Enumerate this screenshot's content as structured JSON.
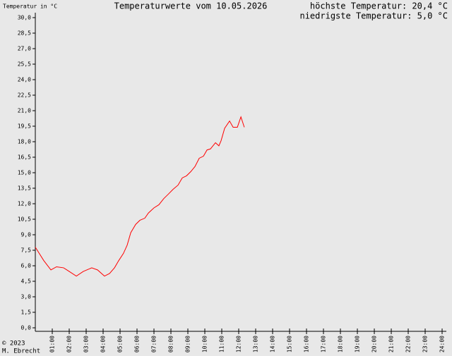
{
  "chart_data": {
    "type": "line",
    "title": "Temperaturwerte vom 10.05.2026",
    "y_axis_label": "Temperatur in °C",
    "annotations": [
      "höchste Temperatur: 20,4 °C",
      "niedrigste Temperatur: 5,0 °C"
    ],
    "footer": [
      "© 2023",
      "M. Ebrecht"
    ],
    "xlim": [
      0,
      24
    ],
    "ylim": [
      0,
      30
    ],
    "xticks": [
      {
        "value": 1,
        "label": "01:00"
      },
      {
        "value": 2,
        "label": "02:00"
      },
      {
        "value": 3,
        "label": "03:00"
      },
      {
        "value": 4,
        "label": "04:00"
      },
      {
        "value": 5,
        "label": "05:00"
      },
      {
        "value": 6,
        "label": "06:00"
      },
      {
        "value": 7,
        "label": "07:00"
      },
      {
        "value": 8,
        "label": "08:00"
      },
      {
        "value": 9,
        "label": "09:00"
      },
      {
        "value": 10,
        "label": "10:00"
      },
      {
        "value": 11,
        "label": "11:00"
      },
      {
        "value": 12,
        "label": "12:00"
      },
      {
        "value": 13,
        "label": "13:00"
      },
      {
        "value": 14,
        "label": "14:00"
      },
      {
        "value": 15,
        "label": "15:00"
      },
      {
        "value": 16,
        "label": "16:00"
      },
      {
        "value": 17,
        "label": "17:00"
      },
      {
        "value": 18,
        "label": "18:00"
      },
      {
        "value": 19,
        "label": "19:00"
      },
      {
        "value": 20,
        "label": "20:00"
      },
      {
        "value": 21,
        "label": "21:00"
      },
      {
        "value": 22,
        "label": "22:00"
      },
      {
        "value": 23,
        "label": "23:00"
      },
      {
        "value": 24,
        "label": "24:00"
      }
    ],
    "yticks": [
      {
        "value": 0,
        "label": "0,0"
      },
      {
        "value": 1.5,
        "label": "1,5"
      },
      {
        "value": 3,
        "label": "3,0"
      },
      {
        "value": 4.5,
        "label": "4,5"
      },
      {
        "value": 6,
        "label": "6,0"
      },
      {
        "value": 7.5,
        "label": "7,5"
      },
      {
        "value": 9,
        "label": "9,0"
      },
      {
        "value": 10.5,
        "label": "10,5"
      },
      {
        "value": 12,
        "label": "12,0"
      },
      {
        "value": 13.5,
        "label": "13,5"
      },
      {
        "value": 15,
        "label": "15,0"
      },
      {
        "value": 16.5,
        "label": "16,5"
      },
      {
        "value": 18,
        "label": "18,0"
      },
      {
        "value": 19.5,
        "label": "19,5"
      },
      {
        "value": 21,
        "label": "21,0"
      },
      {
        "value": 22.5,
        "label": "22,5"
      },
      {
        "value": 24,
        "label": "24,0"
      },
      {
        "value": 25.5,
        "label": "25,5"
      },
      {
        "value": 27,
        "label": "27,0"
      },
      {
        "value": 28.5,
        "label": "28,5"
      },
      {
        "value": 30,
        "label": "30,0"
      }
    ],
    "grid": false,
    "series": [
      {
        "name": "Temperatur",
        "color": "#ff0000",
        "x": [
          0,
          0.5,
          0.92,
          1.25,
          1.67,
          2.0,
          2.42,
          2.83,
          3.33,
          3.67,
          4.08,
          4.38,
          4.67,
          4.92,
          5.2,
          5.42,
          5.63,
          5.92,
          6.17,
          6.46,
          6.67,
          7.0,
          7.29,
          7.58,
          7.83,
          8.13,
          8.42,
          8.67,
          8.92,
          9.17,
          9.42,
          9.67,
          9.92,
          10.13,
          10.33,
          10.63,
          10.83,
          10.96,
          11.17,
          11.46,
          11.67,
          11.92,
          12.13,
          12.33
        ],
        "values": [
          7.8,
          6.5,
          5.6,
          5.9,
          5.8,
          5.45,
          5.0,
          5.45,
          5.8,
          5.6,
          5.0,
          5.25,
          5.8,
          6.5,
          7.2,
          8.0,
          9.2,
          10.0,
          10.4,
          10.6,
          11.1,
          11.6,
          11.9,
          12.5,
          12.9,
          13.4,
          13.8,
          14.5,
          14.7,
          15.1,
          15.6,
          16.4,
          16.6,
          17.2,
          17.3,
          17.9,
          17.6,
          18.1,
          19.3,
          20.0,
          19.4,
          19.4,
          20.4,
          19.4
        ]
      }
    ]
  }
}
